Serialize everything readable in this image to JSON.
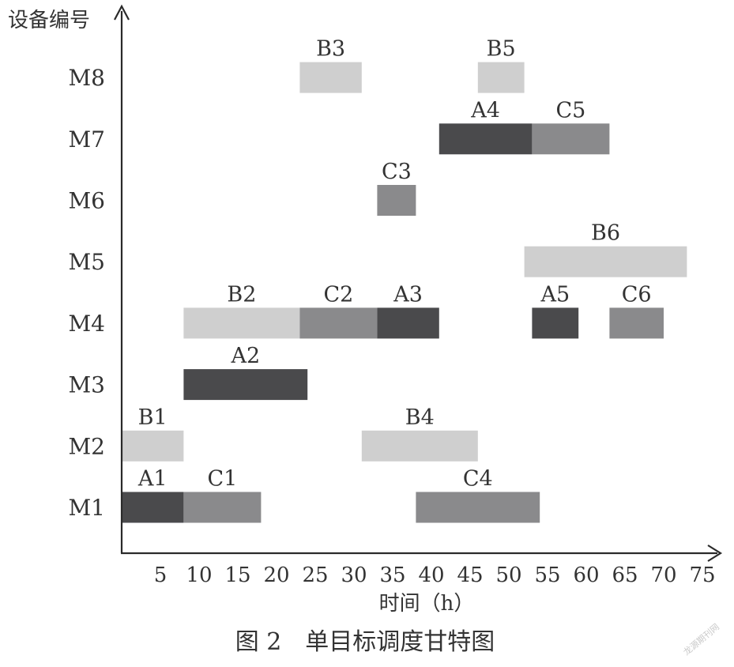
{
  "chart_data": {
    "type": "gantt",
    "ylabel": "设备编号",
    "xlabel": "时间（h）",
    "caption": "图 2　单目标调度甘特图",
    "xlim": [
      0,
      75
    ],
    "xticks": [
      5,
      10,
      15,
      20,
      25,
      30,
      35,
      40,
      45,
      50,
      55,
      60,
      65,
      70,
      75
    ],
    "machines": [
      "M1",
      "M2",
      "M3",
      "M4",
      "M5",
      "M6",
      "M7",
      "M8"
    ],
    "colors": {
      "A": "#4a4a4c",
      "B": "#cfcfcf",
      "C": "#8a8a8c"
    },
    "tasks": [
      {
        "label": "A1",
        "job": "A",
        "machine": "M1",
        "start": 0,
        "end": 8
      },
      {
        "label": "C1",
        "job": "C",
        "machine": "M1",
        "start": 8,
        "end": 18
      },
      {
        "label": "C4",
        "job": "C",
        "machine": "M1",
        "start": 38,
        "end": 54
      },
      {
        "label": "B1",
        "job": "B",
        "machine": "M2",
        "start": 0,
        "end": 8
      },
      {
        "label": "B4",
        "job": "B",
        "machine": "M2",
        "start": 31,
        "end": 46
      },
      {
        "label": "A2",
        "job": "A",
        "machine": "M3",
        "start": 8,
        "end": 24
      },
      {
        "label": "B2",
        "job": "B",
        "machine": "M4",
        "start": 8,
        "end": 23
      },
      {
        "label": "C2",
        "job": "C",
        "machine": "M4",
        "start": 23,
        "end": 33
      },
      {
        "label": "A3",
        "job": "A",
        "machine": "M4",
        "start": 33,
        "end": 41
      },
      {
        "label": "A5",
        "job": "A",
        "machine": "M4",
        "start": 53,
        "end": 59
      },
      {
        "label": "C6",
        "job": "C",
        "machine": "M4",
        "start": 63,
        "end": 70
      },
      {
        "label": "B6",
        "job": "B",
        "machine": "M5",
        "start": 52,
        "end": 73
      },
      {
        "label": "C3",
        "job": "C",
        "machine": "M6",
        "start": 33,
        "end": 38
      },
      {
        "label": "A4",
        "job": "A",
        "machine": "M7",
        "start": 41,
        "end": 53
      },
      {
        "label": "C5",
        "job": "C",
        "machine": "M7",
        "start": 53,
        "end": 63
      },
      {
        "label": "B3",
        "job": "B",
        "machine": "M8",
        "start": 23,
        "end": 31
      },
      {
        "label": "B5",
        "job": "B",
        "machine": "M8",
        "start": 46,
        "end": 52
      }
    ]
  },
  "watermark": "龙源期刊网"
}
